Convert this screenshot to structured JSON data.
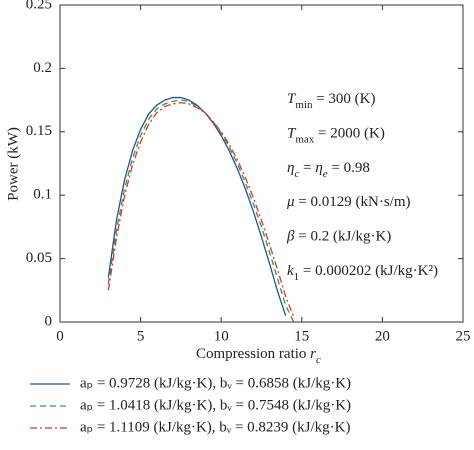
{
  "chart_data": {
    "type": "line",
    "x": [
      3,
      3.5,
      4,
      4.5,
      5,
      5.5,
      6,
      6.5,
      7,
      7.5,
      8,
      8.5,
      9,
      9.5,
      10,
      10.5,
      11,
      11.5,
      12,
      12.5,
      13,
      13.5,
      14,
      14.5
    ],
    "series": [
      {
        "name": "aₚ = 0.9728 (kJ/kg·K), bᵥ = 0.6858 (kJ/kg·K)",
        "color": "#2a4d9c",
        "dash": "solid",
        "values": [
          0.035,
          0.08,
          0.112,
          0.135,
          0.152,
          0.164,
          0.171,
          0.175,
          0.177,
          0.177,
          0.175,
          0.171,
          0.165,
          0.157,
          0.147,
          0.135,
          0.121,
          0.105,
          0.087,
          0.067,
          0.046,
          0.024,
          0.005,
          null
        ]
      },
      {
        "name": "aₚ = 1.0418 (kJ/kg·K), bᵥ = 0.7548 (kJ/kg·K)",
        "color": "#2e9a3c",
        "dash": "dashed",
        "values": [
          0.03,
          0.072,
          0.105,
          0.129,
          0.147,
          0.16,
          0.168,
          0.172,
          0.174,
          0.175,
          0.174,
          0.17,
          0.165,
          0.158,
          0.149,
          0.138,
          0.125,
          0.11,
          0.093,
          0.075,
          0.055,
          0.034,
          0.013,
          0.0
        ]
      },
      {
        "name": "aₚ = 1.1109 (kJ/kg·K), bᵥ = 0.8239 (kJ/kg·K)",
        "color": "#e0302a",
        "dash": "dashdot",
        "values": [
          0.025,
          0.066,
          0.099,
          0.124,
          0.142,
          0.156,
          0.165,
          0.17,
          0.172,
          0.173,
          0.172,
          0.169,
          0.165,
          0.158,
          0.15,
          0.14,
          0.128,
          0.114,
          0.098,
          0.08,
          0.061,
          0.041,
          0.02,
          0.004
        ]
      }
    ],
    "xlim": [
      0,
      25
    ],
    "xticks": [
      0,
      5,
      10,
      15,
      20,
      25
    ],
    "ylim": [
      0,
      0.25
    ],
    "yticks": [
      0,
      0.05,
      0.1,
      0.15,
      0.2,
      0.25
    ],
    "y_label": "Power (kW)",
    "x_label": [
      {
        "text": "Compression ratio "
      },
      {
        "text": "r",
        "italic": true
      },
      {
        "text": "c",
        "italic": true,
        "sub": true
      }
    ],
    "annotations": [
      [
        {
          "text": "T",
          "italic": true
        },
        {
          "text": "min",
          "sub": true
        },
        {
          "text": " = 300 (K)"
        }
      ],
      [
        {
          "text": "T",
          "italic": true
        },
        {
          "text": "max",
          "sub": true
        },
        {
          "text": " = 2000 (K)"
        }
      ],
      [
        {
          "text": "η",
          "italic": true
        },
        {
          "text": "c",
          "italic": true,
          "sub": true
        },
        {
          "text": " = "
        },
        {
          "text": "η",
          "italic": true
        },
        {
          "text": "e",
          "italic": true,
          "sub": true
        },
        {
          "text": " = 0.98"
        }
      ],
      [
        {
          "text": "μ",
          "italic": true
        },
        {
          "text": " = 0.0129 (kN·s/m)"
        }
      ],
      [
        {
          "text": "β",
          "italic": true
        },
        {
          "text": " = 0.2 (kJ/kg·K)"
        }
      ],
      [
        {
          "text": "k",
          "italic": true
        },
        {
          "text": "1",
          "sub": true
        },
        {
          "text": " = 0.000202 (kJ/kg·K²)"
        }
      ]
    ]
  }
}
